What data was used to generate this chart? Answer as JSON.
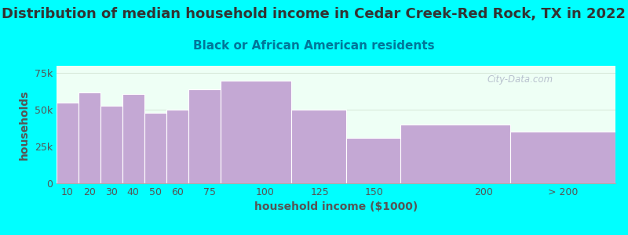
{
  "title": "Distribution of median household income in Cedar Creek-Red Rock, TX in 2022",
  "subtitle": "Black or African American residents",
  "xlabel": "household income ($1000)",
  "ylabel": "households",
  "background_color": "#00ffff",
  "plot_bg_color": "#eefff5",
  "bar_color": "#c4a8d4",
  "bar_edge_color": "#ffffff",
  "bin_edges": [
    5,
    15,
    25,
    35,
    45,
    55,
    65,
    80,
    112,
    137,
    162,
    212,
    260
  ],
  "tick_positions": [
    10,
    20,
    30,
    40,
    50,
    60,
    75,
    100,
    125,
    150,
    200
  ],
  "tick_labels": [
    "10",
    "20",
    "30",
    "40",
    "50",
    "60",
    "75",
    "100",
    "125",
    "150",
    "200"
  ],
  "gt200_tick": 236,
  "gt200_label": "> 200",
  "values": [
    55000,
    62000,
    53000,
    61000,
    48000,
    50000,
    64000,
    70000,
    50000,
    31000,
    40000,
    35000
  ],
  "ylim": [
    0,
    80000
  ],
  "yticks": [
    0,
    25000,
    50000,
    75000
  ],
  "ytick_labels": [
    "0",
    "25k",
    "50k",
    "75k"
  ],
  "title_fontsize": 13,
  "subtitle_fontsize": 11,
  "axis_label_fontsize": 10,
  "tick_fontsize": 9,
  "watermark_text": "City-Data.com",
  "title_color": "#333333",
  "subtitle_color": "#007799",
  "axis_label_color": "#555555",
  "tick_color": "#555555"
}
